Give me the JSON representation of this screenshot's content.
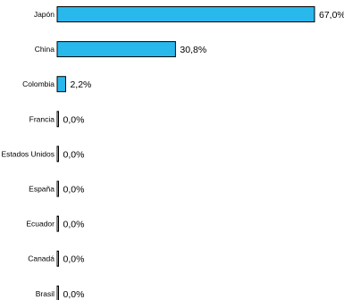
{
  "chart_data": {
    "type": "bar",
    "orientation": "horizontal",
    "categories": [
      "Japón",
      "China",
      "Colombia",
      "Francia",
      "Estados Unidos",
      "España",
      "Ecuador",
      "Canadá",
      "Brasil"
    ],
    "values": [
      67.0,
      30.8,
      2.2,
      0.0,
      0.0,
      0.0,
      0.0,
      0.0,
      0.0
    ],
    "value_labels": [
      "67,0%",
      "30,8%",
      "2,2%",
      "0,0%",
      "0,0%",
      "0,0%",
      "0,0%",
      "0,0%",
      "0,0%"
    ],
    "xlim": [
      0,
      67.0
    ],
    "grid": false,
    "legend": "none",
    "colors": {
      "bar_fill": "#29B8EC",
      "bar_stroke": "#000000",
      "axis": "#000000"
    }
  }
}
